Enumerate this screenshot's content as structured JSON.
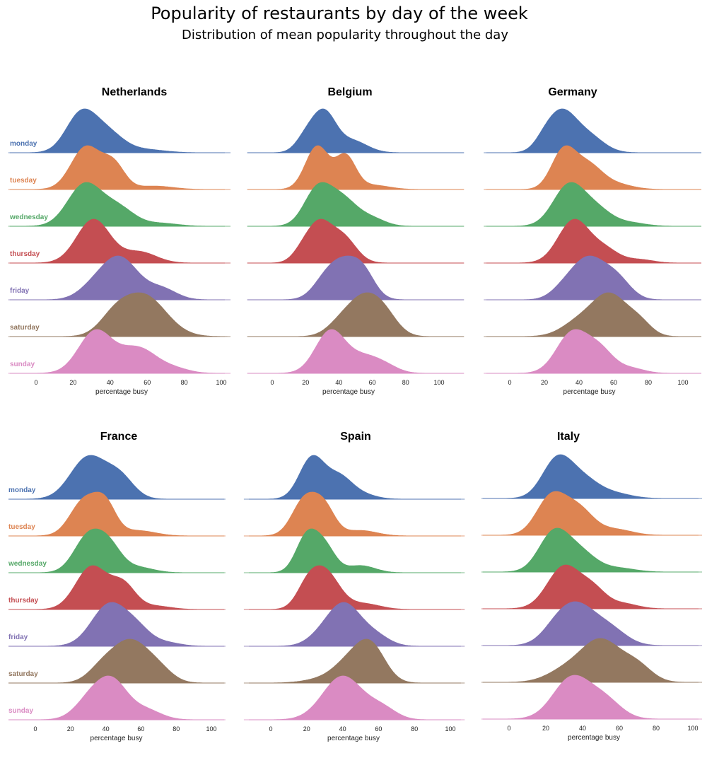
{
  "title": "Popularity of restaurants by day of the week",
  "subtitle": "Distribution of mean popularity throughout the day",
  "days": [
    "monday",
    "tuesday",
    "wednesday",
    "thursday",
    "friday",
    "saturday",
    "sunday"
  ],
  "colors": {
    "monday": "#4c72b0",
    "tuesday": "#dd8452",
    "wednesday": "#55a868",
    "thursday": "#c44e52",
    "friday": "#8172b3",
    "saturday": "#937860",
    "sunday": "#da8bc3"
  },
  "chart_data": [
    {
      "type": "area",
      "title": "Netherlands",
      "xlabel": "percentage busy",
      "xticks": [
        0,
        20,
        40,
        60,
        80,
        100
      ],
      "xlim": [
        -15,
        105
      ],
      "series": [
        {
          "name": "monday",
          "peaks": [
            [
              24,
              8,
              1.0
            ],
            [
              38,
              9,
              0.55
            ],
            [
              60,
              10,
              0.08
            ]
          ]
        },
        {
          "name": "tuesday",
          "peaks": [
            [
              27,
              8,
              1.0
            ],
            [
              42,
              6,
              0.55
            ],
            [
              64,
              10,
              0.08
            ]
          ]
        },
        {
          "name": "wednesday",
          "peaks": [
            [
              26,
              9,
              1.0
            ],
            [
              44,
              9,
              0.45
            ],
            [
              68,
              9,
              0.07
            ]
          ]
        },
        {
          "name": "thursday",
          "peaks": [
            [
              31,
              9,
              1.0
            ],
            [
              56,
              9,
              0.25
            ]
          ]
        },
        {
          "name": "friday",
          "peaks": [
            [
              45,
              10,
              1.0
            ],
            [
              68,
              8,
              0.25
            ],
            [
              30,
              8,
              0.2
            ]
          ]
        },
        {
          "name": "saturday",
          "peaks": [
            [
              58,
              12,
              1.0
            ],
            [
              42,
              8,
              0.35
            ]
          ]
        },
        {
          "name": "sunday",
          "peaks": [
            [
              32,
              9,
              1.0
            ],
            [
              55,
              10,
              0.6
            ],
            [
              75,
              8,
              0.1
            ]
          ]
        }
      ]
    },
    {
      "type": "area",
      "title": "Belgium",
      "xlabel": "percentage busy",
      "xticks": [
        0,
        20,
        40,
        60,
        80,
        100
      ],
      "xlim": [
        -15,
        115
      ],
      "series": [
        {
          "name": "monday",
          "peaks": [
            [
              31,
              7,
              1.0
            ],
            [
              20,
              6,
              0.35
            ],
            [
              48,
              9,
              0.3
            ]
          ]
        },
        {
          "name": "tuesday",
          "peaks": [
            [
              27,
              7,
              1.0
            ],
            [
              44,
              6,
              0.75
            ],
            [
              60,
              10,
              0.1
            ]
          ]
        },
        {
          "name": "wednesday",
          "peaks": [
            [
              27,
              8,
              1.0
            ],
            [
              42,
              9,
              0.75
            ],
            [
              60,
              8,
              0.2
            ]
          ]
        },
        {
          "name": "thursday",
          "peaks": [
            [
              28,
              7,
              1.0
            ],
            [
              42,
              8,
              0.75
            ],
            [
              18,
              6,
              0.3
            ]
          ]
        },
        {
          "name": "friday",
          "peaks": [
            [
              42,
              10,
              1.0
            ],
            [
              55,
              7,
              0.5
            ],
            [
              30,
              7,
              0.2
            ]
          ]
        },
        {
          "name": "saturday",
          "peaks": [
            [
              55,
              10,
              1.0
            ],
            [
              68,
              8,
              0.4
            ],
            [
              40,
              8,
              0.25
            ]
          ]
        },
        {
          "name": "sunday",
          "peaks": [
            [
              35,
              9,
              1.0
            ],
            [
              55,
              9,
              0.35
            ],
            [
              68,
              8,
              0.15
            ]
          ]
        }
      ]
    },
    {
      "type": "area",
      "title": "Germany",
      "xlabel": "percentage busy",
      "xticks": [
        0,
        20,
        40,
        60,
        80,
        100
      ],
      "xlim": [
        -15,
        110
      ],
      "series": [
        {
          "name": "monday",
          "peaks": [
            [
              30,
              8,
              1.0
            ],
            [
              45,
              9,
              0.45
            ],
            [
              20,
              6,
              0.25
            ]
          ]
        },
        {
          "name": "tuesday",
          "peaks": [
            [
              31,
              7,
              1.0
            ],
            [
              45,
              8,
              0.6
            ],
            [
              60,
              10,
              0.15
            ]
          ]
        },
        {
          "name": "wednesday",
          "peaks": [
            [
              34,
              9,
              1.0
            ],
            [
              50,
              9,
              0.4
            ],
            [
              70,
              9,
              0.08
            ]
          ]
        },
        {
          "name": "thursday",
          "peaks": [
            [
              37,
              9,
              1.0
            ],
            [
              55,
              8,
              0.3
            ],
            [
              75,
              8,
              0.08
            ]
          ]
        },
        {
          "name": "friday",
          "peaks": [
            [
              45,
              10,
              1.0
            ],
            [
              62,
              8,
              0.45
            ],
            [
              30,
              7,
              0.15
            ]
          ]
        },
        {
          "name": "saturday",
          "peaks": [
            [
              58,
              10,
              1.0
            ],
            [
              40,
              10,
              0.35
            ],
            [
              75,
              7,
              0.3
            ]
          ]
        },
        {
          "name": "sunday",
          "peaks": [
            [
              36,
              9,
              1.0
            ],
            [
              52,
              8,
              0.55
            ],
            [
              70,
              8,
              0.12
            ]
          ]
        }
      ]
    },
    {
      "type": "area",
      "title": "France",
      "xlabel": "percentage busy",
      "xticks": [
        0,
        20,
        40,
        60,
        80,
        100
      ],
      "xlim": [
        -15,
        108
      ],
      "series": [
        {
          "name": "monday",
          "peaks": [
            [
              30,
              10,
              1.0
            ],
            [
              48,
              8,
              0.5
            ]
          ]
        },
        {
          "name": "tuesday",
          "peaks": [
            [
              28,
              8,
              1.0
            ],
            [
              40,
              6,
              0.75
            ],
            [
              58,
              10,
              0.15
            ]
          ]
        },
        {
          "name": "wednesday",
          "peaks": [
            [
              30,
              8,
              1.0
            ],
            [
              42,
              7,
              0.65
            ],
            [
              58,
              9,
              0.15
            ]
          ]
        },
        {
          "name": "thursday",
          "peaks": [
            [
              32,
              9,
              1.0
            ],
            [
              50,
              7,
              0.55
            ],
            [
              68,
              9,
              0.08
            ]
          ]
        },
        {
          "name": "friday",
          "peaks": [
            [
              42,
              10,
              1.0
            ],
            [
              58,
              8,
              0.35
            ],
            [
              75,
              8,
              0.08
            ]
          ]
        },
        {
          "name": "saturday",
          "peaks": [
            [
              54,
              10,
              1.0
            ],
            [
              38,
              8,
              0.35
            ],
            [
              70,
              8,
              0.3
            ]
          ]
        },
        {
          "name": "sunday",
          "peaks": [
            [
              33,
              9,
              0.85
            ],
            [
              45,
              8,
              1.0
            ],
            [
              62,
              9,
              0.35
            ]
          ]
        }
      ]
    },
    {
      "type": "area",
      "title": "Spain",
      "xlabel": "percentage busy",
      "xticks": [
        0,
        20,
        40,
        60,
        80,
        100
      ],
      "xlim": [
        -15,
        108
      ],
      "series": [
        {
          "name": "monday",
          "peaks": [
            [
              23,
              7,
              1.0
            ],
            [
              38,
              7,
              0.5
            ],
            [
              50,
              8,
              0.12
            ]
          ]
        },
        {
          "name": "tuesday",
          "peaks": [
            [
              19,
              7,
              1.0
            ],
            [
              30,
              6,
              0.7
            ],
            [
              50,
              9,
              0.15
            ]
          ]
        },
        {
          "name": "wednesday",
          "peaks": [
            [
              20,
              6,
              1.0
            ],
            [
              30,
              6,
              0.7
            ],
            [
              50,
              8,
              0.2
            ]
          ]
        },
        {
          "name": "thursday",
          "peaks": [
            [
              30,
              8,
              1.0
            ],
            [
              20,
              6,
              0.45
            ],
            [
              52,
              9,
              0.15
            ]
          ]
        },
        {
          "name": "friday",
          "peaks": [
            [
              41,
              9,
              1.0
            ],
            [
              58,
              8,
              0.25
            ],
            [
              28,
              8,
              0.2
            ]
          ]
        },
        {
          "name": "saturday",
          "peaks": [
            [
              56,
              8,
              1.0
            ],
            [
              44,
              9,
              0.6
            ],
            [
              28,
              10,
              0.1
            ]
          ]
        },
        {
          "name": "sunday",
          "peaks": [
            [
              40,
              11,
              1.0
            ],
            [
              62,
              8,
              0.25
            ]
          ]
        }
      ]
    },
    {
      "type": "area",
      "title": "Italy",
      "xlabel": "percentage busy",
      "xticks": [
        0,
        20,
        40,
        60,
        80,
        100
      ],
      "xlim": [
        -15,
        105
      ],
      "series": [
        {
          "name": "monday",
          "peaks": [
            [
              26,
              8,
              1.0
            ],
            [
              40,
              9,
              0.5
            ],
            [
              58,
              9,
              0.12
            ]
          ]
        },
        {
          "name": "tuesday",
          "peaks": [
            [
              23,
              8,
              1.0
            ],
            [
              38,
              8,
              0.65
            ],
            [
              58,
              9,
              0.15
            ]
          ]
        },
        {
          "name": "wednesday",
          "peaks": [
            [
              24,
              8,
              1.0
            ],
            [
              38,
              9,
              0.55
            ],
            [
              60,
              9,
              0.1
            ]
          ]
        },
        {
          "name": "thursday",
          "peaks": [
            [
              30,
              9,
              1.0
            ],
            [
              46,
              7,
              0.4
            ],
            [
              62,
              8,
              0.12
            ]
          ]
        },
        {
          "name": "friday",
          "peaks": [
            [
              37,
              10,
              1.0
            ],
            [
              55,
              9,
              0.4
            ],
            [
              25,
              8,
              0.3
            ]
          ]
        },
        {
          "name": "saturday",
          "peaks": [
            [
              50,
              11,
              1.0
            ],
            [
              70,
              8,
              0.35
            ],
            [
              30,
              10,
              0.25
            ]
          ]
        },
        {
          "name": "sunday",
          "peaks": [
            [
              34,
              10,
              1.0
            ],
            [
              52,
              9,
              0.45
            ]
          ]
        }
      ]
    }
  ]
}
